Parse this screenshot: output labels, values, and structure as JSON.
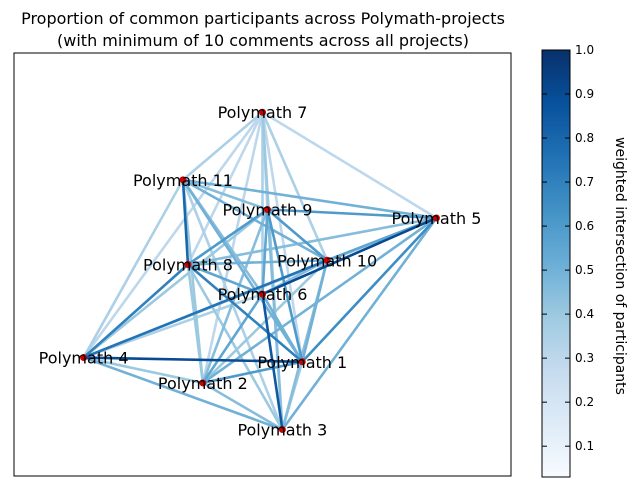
{
  "title_line1": "Proportion of common participants across Polymath-projects",
  "title_line2": "(with minimum of 10 comments across all projects)",
  "colorbar_label": "weighted intersection of participants",
  "chart_data": {
    "type": "network",
    "nodes": [
      {
        "id": "P7",
        "label": "Polymath 7",
        "x": 0.5,
        "y": 0.86
      },
      {
        "id": "P11",
        "label": "Polymath 11",
        "x": 0.34,
        "y": 0.7
      },
      {
        "id": "P9",
        "label": "Polymath 9",
        "x": 0.51,
        "y": 0.63
      },
      {
        "id": "P5",
        "label": "Polymath 5",
        "x": 0.85,
        "y": 0.61
      },
      {
        "id": "P8",
        "label": "Polymath 8",
        "x": 0.35,
        "y": 0.5
      },
      {
        "id": "P10",
        "label": "Polymath 10",
        "x": 0.63,
        "y": 0.51
      },
      {
        "id": "P6",
        "label": "Polymath 6",
        "x": 0.5,
        "y": 0.43
      },
      {
        "id": "P4",
        "label": "Polymath 4",
        "x": 0.14,
        "y": 0.28
      },
      {
        "id": "P1",
        "label": "Polymath 1",
        "x": 0.58,
        "y": 0.27
      },
      {
        "id": "P2",
        "label": "Polymath 2",
        "x": 0.38,
        "y": 0.22
      },
      {
        "id": "P3",
        "label": "Polymath 3",
        "x": 0.54,
        "y": 0.11
      }
    ],
    "edges": [
      {
        "s": "P7",
        "t": "P11",
        "w": 0.35
      },
      {
        "s": "P7",
        "t": "P9",
        "w": 0.35
      },
      {
        "s": "P7",
        "t": "P5",
        "w": 0.3
      },
      {
        "s": "P7",
        "t": "P8",
        "w": 0.3
      },
      {
        "s": "P7",
        "t": "P10",
        "w": 0.35
      },
      {
        "s": "P7",
        "t": "P6",
        "w": 0.35
      },
      {
        "s": "P7",
        "t": "P4",
        "w": 0.3
      },
      {
        "s": "P7",
        "t": "P1",
        "w": 0.3
      },
      {
        "s": "P7",
        "t": "P2",
        "w": 0.3
      },
      {
        "s": "P7",
        "t": "P3",
        "w": 0.4
      },
      {
        "s": "P11",
        "t": "P9",
        "w": 0.45
      },
      {
        "s": "P11",
        "t": "P5",
        "w": 0.5
      },
      {
        "s": "P11",
        "t": "P8",
        "w": 0.8
      },
      {
        "s": "P11",
        "t": "P10",
        "w": 0.5
      },
      {
        "s": "P11",
        "t": "P6",
        "w": 0.45
      },
      {
        "s": "P11",
        "t": "P4",
        "w": 0.35
      },
      {
        "s": "P11",
        "t": "P1",
        "w": 0.5
      },
      {
        "s": "P11",
        "t": "P2",
        "w": 0.4
      },
      {
        "s": "P11",
        "t": "P3",
        "w": 0.35
      },
      {
        "s": "P9",
        "t": "P5",
        "w": 0.6
      },
      {
        "s": "P9",
        "t": "P8",
        "w": 0.6
      },
      {
        "s": "P9",
        "t": "P10",
        "w": 0.6
      },
      {
        "s": "P9",
        "t": "P6",
        "w": 0.55
      },
      {
        "s": "P9",
        "t": "P4",
        "w": 0.4
      },
      {
        "s": "P9",
        "t": "P1",
        "w": 0.6
      },
      {
        "s": "P9",
        "t": "P2",
        "w": 0.45
      },
      {
        "s": "P9",
        "t": "P3",
        "w": 0.45
      },
      {
        "s": "P5",
        "t": "P8",
        "w": 0.45
      },
      {
        "s": "P5",
        "t": "P10",
        "w": 0.55
      },
      {
        "s": "P5",
        "t": "P6",
        "w": 0.9
      },
      {
        "s": "P5",
        "t": "P4",
        "w": 0.4
      },
      {
        "s": "P5",
        "t": "P1",
        "w": 0.65
      },
      {
        "s": "P5",
        "t": "P2",
        "w": 0.5
      },
      {
        "s": "P5",
        "t": "P3",
        "w": 0.5
      },
      {
        "s": "P8",
        "t": "P10",
        "w": 0.5
      },
      {
        "s": "P8",
        "t": "P6",
        "w": 0.55
      },
      {
        "s": "P8",
        "t": "P4",
        "w": 0.7
      },
      {
        "s": "P8",
        "t": "P1",
        "w": 0.7
      },
      {
        "s": "P8",
        "t": "P2",
        "w": 0.4
      },
      {
        "s": "P8",
        "t": "P3",
        "w": 0.4
      },
      {
        "s": "P10",
        "t": "P6",
        "w": 0.45
      },
      {
        "s": "P10",
        "t": "P4",
        "w": 0.75
      },
      {
        "s": "P10",
        "t": "P1",
        "w": 0.5
      },
      {
        "s": "P10",
        "t": "P2",
        "w": 0.4
      },
      {
        "s": "P10",
        "t": "P3",
        "w": 0.45
      },
      {
        "s": "P6",
        "t": "P4",
        "w": 0.35
      },
      {
        "s": "P6",
        "t": "P1",
        "w": 0.5
      },
      {
        "s": "P6",
        "t": "P2",
        "w": 0.55
      },
      {
        "s": "P6",
        "t": "P3",
        "w": 0.85
      },
      {
        "s": "P4",
        "t": "P1",
        "w": 0.9
      },
      {
        "s": "P4",
        "t": "P2",
        "w": 0.4
      },
      {
        "s": "P4",
        "t": "P3",
        "w": 0.5
      },
      {
        "s": "P1",
        "t": "P2",
        "w": 0.6
      },
      {
        "s": "P1",
        "t": "P3",
        "w": 0.4
      },
      {
        "s": "P2",
        "t": "P3",
        "w": 0.45
      }
    ],
    "node_color": "#cc0000",
    "colormap": "Blues",
    "colorbar_range": [
      0.03,
      1.0
    ],
    "colorbar_ticks": [
      "0.1",
      "0.2",
      "0.3",
      "0.4",
      "0.5",
      "0.6",
      "0.7",
      "0.8",
      "0.9",
      "1.0"
    ]
  }
}
